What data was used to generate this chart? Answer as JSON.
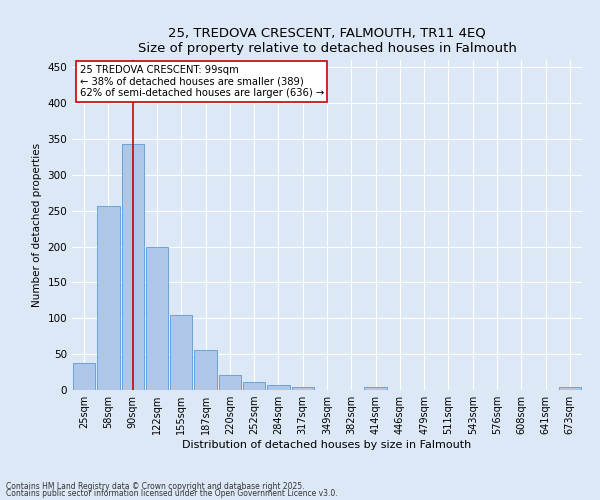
{
  "title": "25, TREDOVA CRESCENT, FALMOUTH, TR11 4EQ",
  "subtitle": "Size of property relative to detached houses in Falmouth",
  "xlabel": "Distribution of detached houses by size in Falmouth",
  "ylabel": "Number of detached properties",
  "categories": [
    "25sqm",
    "58sqm",
    "90sqm",
    "122sqm",
    "155sqm",
    "187sqm",
    "220sqm",
    "252sqm",
    "284sqm",
    "317sqm",
    "349sqm",
    "382sqm",
    "414sqm",
    "446sqm",
    "479sqm",
    "511sqm",
    "543sqm",
    "576sqm",
    "608sqm",
    "641sqm",
    "673sqm"
  ],
  "values": [
    37,
    256,
    343,
    199,
    104,
    56,
    21,
    11,
    7,
    4,
    0,
    0,
    4,
    0,
    0,
    0,
    0,
    0,
    0,
    0,
    4
  ],
  "bar_color": "#aec6e8",
  "bar_edge_color": "#5b9bd5",
  "vline_x_index": 2,
  "vline_color": "#cc0000",
  "annotation_box_text": "25 TREDOVA CRESCENT: 99sqm\n← 38% of detached houses are smaller (389)\n62% of semi-detached houses are larger (636) →",
  "ylim": [
    0,
    460
  ],
  "yticks": [
    0,
    50,
    100,
    150,
    200,
    250,
    300,
    350,
    400,
    450
  ],
  "fig_bg_color": "#dce8f5",
  "axes_bg_color": "#dce8f5",
  "footnote1": "Contains HM Land Registry data © Crown copyright and database right 2025.",
  "footnote2": "Contains public sector information licensed under the Open Government Licence v3.0."
}
